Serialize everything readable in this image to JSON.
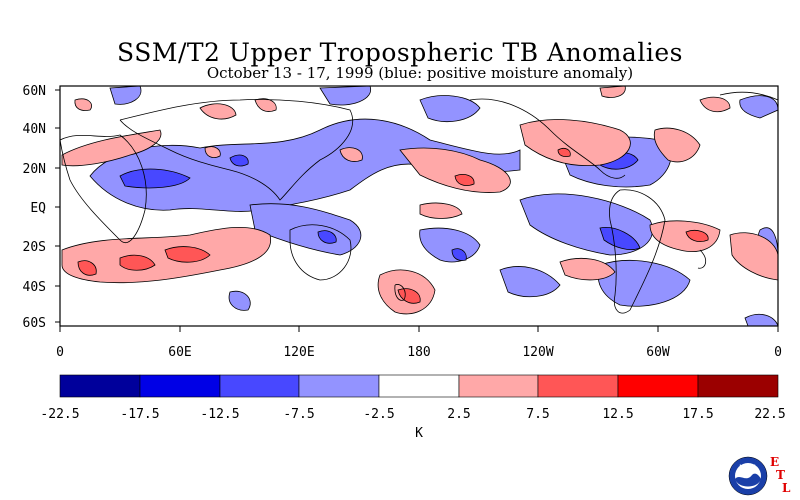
{
  "title": "SSM/T2 Upper Tropospheric TB Anomalies",
  "subtitle": "October 13 - 17, 1999 (blue: positive moisture anomaly)",
  "y_ticks": [
    "60N",
    "40N",
    "20N",
    "EQ",
    "20S",
    "40S",
    "60S"
  ],
  "x_ticks": [
    "0",
    "60E",
    "120E",
    "180",
    "120W",
    "60W",
    "0"
  ],
  "colorbar": {
    "colors": [
      "#00009b",
      "#0000e6",
      "#4848ff",
      "#9393ff",
      "#ffffff",
      "#ffa8a8",
      "#ff5656",
      "#ff0000",
      "#9b0000"
    ],
    "labels": [
      "-22.5",
      "-17.5",
      "-12.5",
      "-7.5",
      "-2.5",
      "2.5",
      "7.5",
      "12.5",
      "17.5",
      "22.5"
    ],
    "unit": "K"
  },
  "logo": {
    "name": "NOAA",
    "letters": [
      "E",
      "T",
      "L"
    ]
  }
}
